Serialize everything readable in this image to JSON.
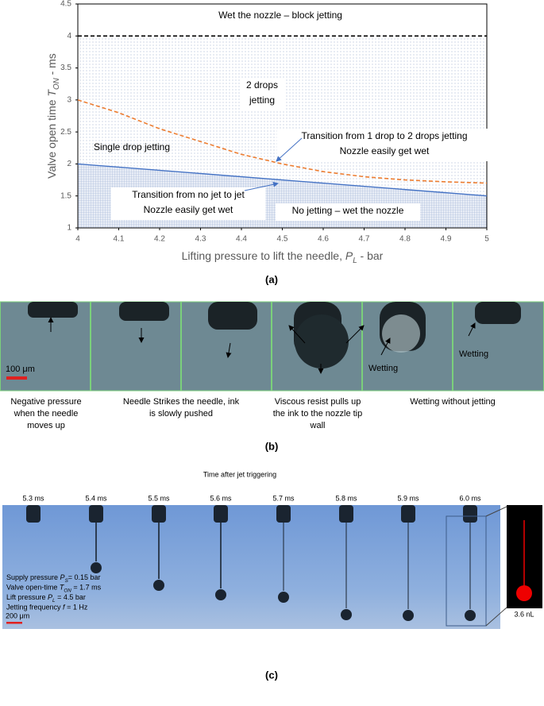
{
  "chart_data": {
    "type": "line",
    "x_label": [
      "Lifting pressure to lift the needle, ",
      "P",
      "L",
      " -  bar"
    ],
    "y_label": [
      "Valve open time ",
      "T",
      "ON",
      " - ms"
    ],
    "xlim": [
      4,
      5
    ],
    "xticks": [
      4,
      4.1,
      4.2,
      4.3,
      4.4,
      4.5,
      4.6,
      4.7,
      4.8,
      4.9,
      5
    ],
    "ylim": [
      1,
      4.5
    ],
    "yticks": [
      1,
      1.5,
      2,
      2.5,
      3,
      3.5,
      4,
      4.5
    ],
    "series": [
      {
        "color": "#4472c4",
        "dashed": false,
        "x": [
          4,
          5
        ],
        "values": [
          2,
          1.5
        ]
      },
      {
        "color": "#ed7d31",
        "dashed": true,
        "x": [
          4,
          4.1,
          4.2,
          4.3,
          4.4,
          4.5,
          4.6,
          4.7,
          4.8,
          4.9,
          5
        ],
        "values": [
          3.0,
          2.8,
          2.55,
          2.35,
          2.15,
          2.0,
          1.88,
          1.8,
          1.75,
          1.72,
          1.7
        ]
      },
      {
        "color": "#000000",
        "dashed": true,
        "x": [
          4,
          5
        ],
        "values": [
          4,
          4
        ]
      }
    ],
    "annotations": [
      {
        "text": [
          "Wet the nozzle – block jetting"
        ]
      },
      {
        "text": [
          "2 drops",
          "jetting"
        ]
      },
      {
        "text": [
          "Single drop jetting"
        ]
      },
      {
        "text": [
          "Transition from 1 drop to 2 drops jetting",
          "Nozzle easily get wet"
        ]
      },
      {
        "text": [
          "Transition from no jet to jet",
          "Nozzle easily get wet"
        ]
      },
      {
        "text": [
          "No jetting – wet the nozzle"
        ]
      }
    ],
    "panel_label": "(a)"
  },
  "panel_b": {
    "scale": "100 μm",
    "wetting": [
      "Wetting",
      "Wetting"
    ],
    "captions": [
      [
        "Negative pressure",
        "when the needle",
        "moves up"
      ],
      [
        "Needle Strikes the needle, ink",
        "is slowly pushed"
      ],
      [
        "Viscous resist pulls up",
        "the ink to the nozzle tip",
        "wall"
      ],
      [
        "Wetting without jetting"
      ]
    ],
    "panel_label": "(b)"
  },
  "panel_c": {
    "header": "Time after jet triggering",
    "times": [
      "5.3 ms",
      "5.4 ms",
      "5.5 ms",
      "5.6 ms",
      "5.7 ms",
      "5.8 ms",
      "5.9 ms",
      "6.0 ms"
    ],
    "conditions": [
      [
        "Supply pressure ",
        "P",
        "S",
        "= 0.15 bar"
      ],
      [
        "Valve open-time ",
        "T",
        "ON",
        " = 1.7 ms"
      ],
      [
        "Lift pressure ",
        "P",
        "L",
        " = 4.5 bar"
      ],
      [
        "Jetting frequency ",
        "f",
        "",
        " = 1 Hz"
      ]
    ],
    "scale": "200 μm",
    "volume": "3.6 nL",
    "panel_label": "(c)"
  }
}
